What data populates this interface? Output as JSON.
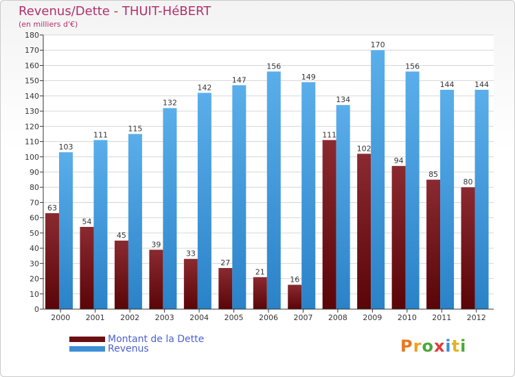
{
  "header": {
    "title": "Revenus/Dette - THUIT-HéBERT",
    "subtitle": "(en milliers d'€)"
  },
  "chart_data": {
    "type": "bar",
    "title": "Revenus/Dette - THUIT-HéBERT",
    "ylabel": "(en milliers d'€)",
    "xlabel": "",
    "ylim": [
      0,
      180
    ],
    "ytick_step": 10,
    "grid": true,
    "legend": "bottom-left",
    "categories": [
      "2000",
      "2001",
      "2002",
      "2003",
      "2004",
      "2005",
      "2006",
      "2007",
      "2008",
      "2009",
      "2010",
      "2011",
      "2012"
    ],
    "series": [
      {
        "name": "Montant de la Dette",
        "color": "#7a1a1e",
        "values": [
          63,
          54,
          45,
          39,
          33,
          27,
          21,
          16,
          111,
          102,
          94,
          85,
          80
        ]
      },
      {
        "name": "Revenus",
        "color": "#4a9fe0",
        "values": [
          103,
          111,
          115,
          132,
          142,
          147,
          156,
          149,
          134,
          170,
          156,
          144,
          144
        ]
      }
    ]
  },
  "legend": {
    "items": [
      {
        "label": "Montant de la Dette",
        "color": "#6b0f12"
      },
      {
        "label": "Revenus",
        "color": "#3d8fd6"
      }
    ]
  },
  "logo": {
    "text": "Proxiti"
  }
}
